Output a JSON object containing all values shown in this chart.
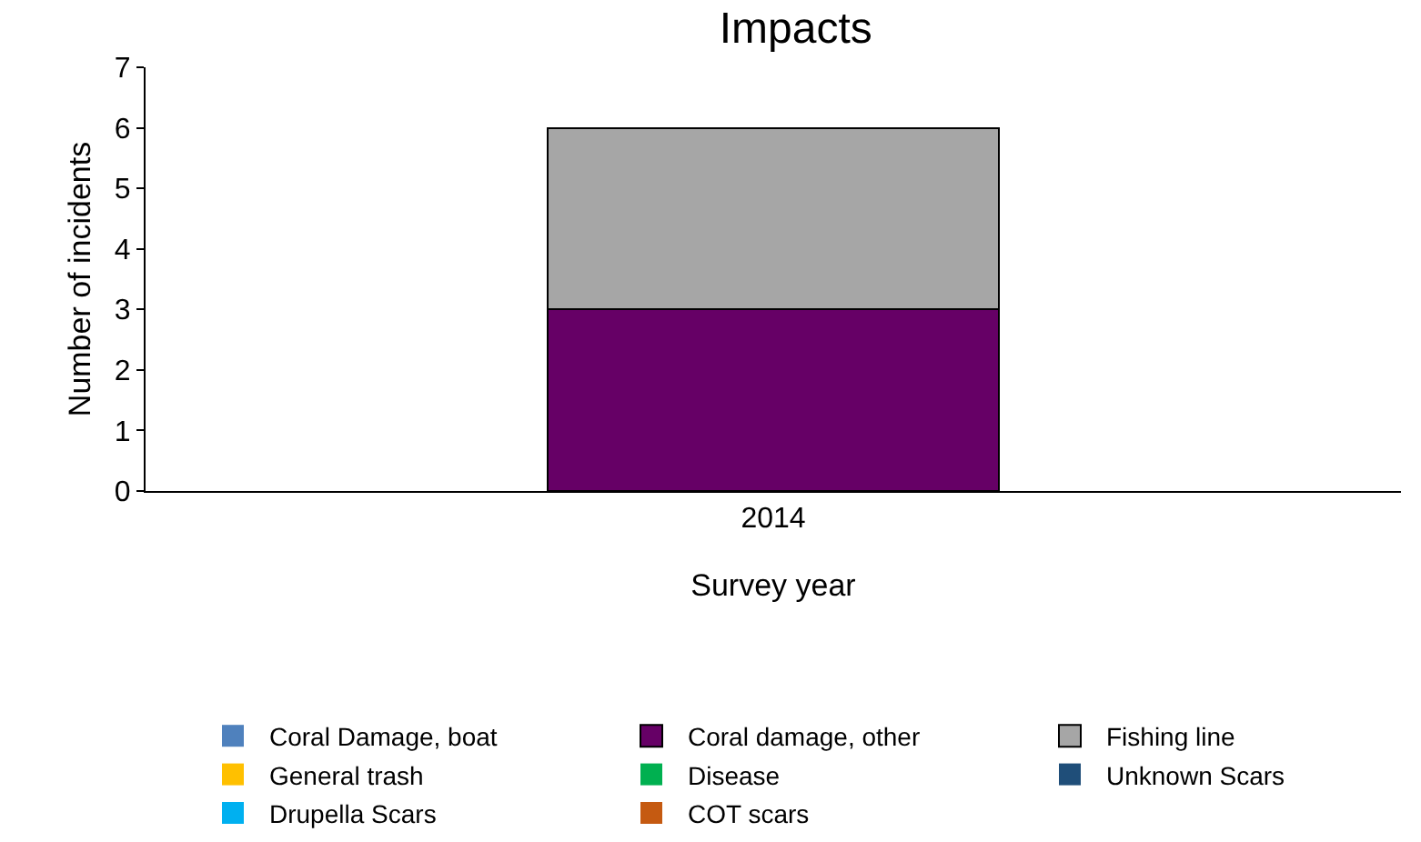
{
  "chart_data": {
    "type": "bar",
    "title": "Impacts",
    "xlabel": "Survey year",
    "ylabel": "Number of incidents",
    "categories": [
      "2014"
    ],
    "stacked": true,
    "ylim": [
      0,
      7
    ],
    "yticks": [
      0,
      1,
      2,
      3,
      4,
      5,
      6,
      7
    ],
    "legend": "bottom",
    "series": [
      {
        "name": "Coral Damage, boat",
        "color": "#4f81bd",
        "values": [
          0
        ]
      },
      {
        "name": "Coral damage, other",
        "color": "#660066",
        "values": [
          3
        ]
      },
      {
        "name": "Fishing line",
        "color": "#a6a6a6",
        "values": [
          3
        ]
      },
      {
        "name": "General trash",
        "color": "#ffc000",
        "values": [
          0
        ]
      },
      {
        "name": "Disease",
        "color": "#00b050",
        "values": [
          0
        ]
      },
      {
        "name": "Unknown Scars",
        "color": "#1f4e79",
        "values": [
          0
        ]
      },
      {
        "name": "Drupella Scars",
        "color": "#00b0f0",
        "values": [
          0
        ]
      },
      {
        "name": "COT scars",
        "color": "#c55a11",
        "values": [
          0
        ]
      }
    ]
  }
}
